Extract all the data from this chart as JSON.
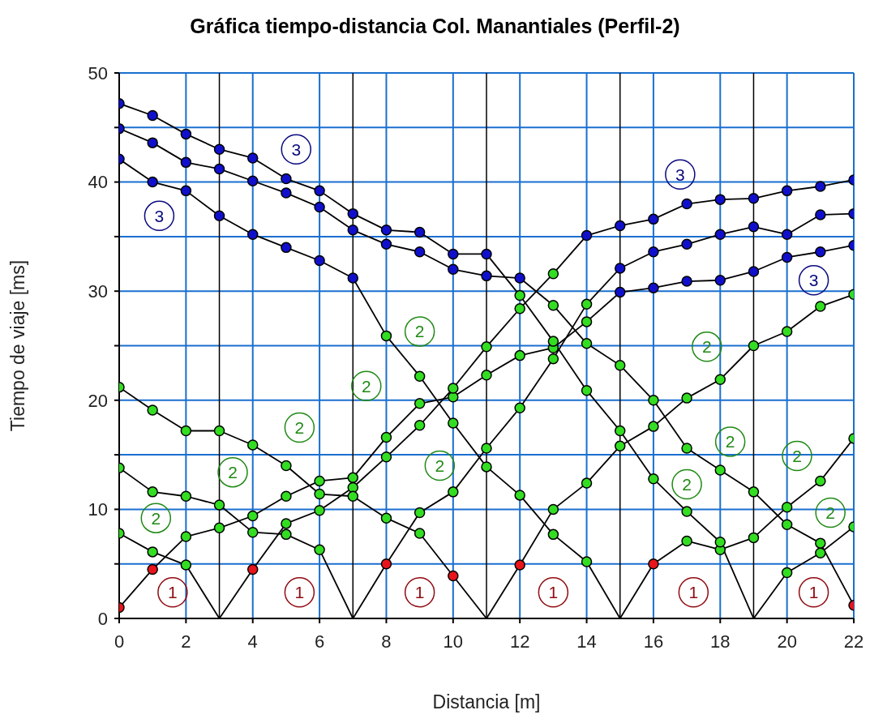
{
  "chart_data": {
    "type": "line",
    "title": "Gráfica tiempo-distancia Col. Manantiales (Perfil-2)",
    "xlabel": "Distancia [m]",
    "ylabel": "Tiempo de viaje [ms]",
    "xlim": [
      0,
      22
    ],
    "ylim": [
      0,
      50
    ],
    "xticks": [
      0,
      2,
      4,
      6,
      8,
      10,
      12,
      14,
      16,
      18,
      20,
      22
    ],
    "yticks": [
      0,
      {
        "value": 5,
        "label": null
      },
      10,
      {
        "value": 15,
        "label": null
      },
      20,
      {
        "value": 25,
        "label": null
      },
      30,
      {
        "value": 35,
        "label": null
      },
      40,
      {
        "value": 45,
        "label": null
      },
      50
    ],
    "grid": true,
    "marker": "circle",
    "line_style": "solid",
    "ref_lines": [
      {
        "axis": "x",
        "value": 3,
        "label": null,
        "color": "#000000"
      },
      {
        "axis": "x",
        "value": 7,
        "label": null,
        "color": "#000000"
      },
      {
        "axis": "x",
        "value": 11,
        "label": null,
        "color": "#000000"
      },
      {
        "axis": "x",
        "value": 15,
        "label": null,
        "color": "#000000"
      },
      {
        "axis": "x",
        "value": 19,
        "label": null,
        "color": "#000000"
      }
    ],
    "series": [
      {
        "color": "#000000",
        "x": [
          0,
          1,
          2,
          3,
          4,
          5,
          6,
          7,
          8,
          9,
          10,
          11,
          12,
          13,
          14,
          15,
          16,
          17,
          18,
          19,
          20,
          21,
          22
        ],
        "values": [
          1.0,
          4.5,
          7.5,
          8.3,
          9.4,
          11.2,
          12.6,
          12.9,
          16.6,
          19.7,
          20.3,
          22.3,
          24.1,
          24.8,
          27.2,
          29.9,
          30.3,
          30.9,
          31.0,
          31.8,
          33.1,
          33.6,
          34.2
        ],
        "colors": [
          "#e8141c",
          "#e8141c",
          "#33dd22",
          "#33dd22",
          "#33dd22",
          "#33dd22",
          "#33dd22",
          "#33dd22",
          "#33dd22",
          "#33dd22",
          "#33dd22",
          "#33dd22",
          "#33dd22",
          "#33dd22",
          "#33dd22",
          "#1010cc",
          "#1010cc",
          "#1010cc",
          "#1010cc",
          "#1010cc",
          "#1010cc",
          "#1010cc",
          "#1010cc"
        ]
      },
      {
        "color": "#000000",
        "x": [
          3,
          4,
          5,
          6,
          7,
          8,
          9,
          10,
          11,
          12,
          13,
          14,
          15,
          16,
          17,
          18,
          19,
          20,
          21,
          22
        ],
        "values": [
          0,
          4.5,
          8.7,
          9.9,
          12.0,
          14.8,
          17.7,
          21.1,
          24.9,
          28.4,
          31.6,
          35.1,
          36.0,
          36.6,
          38.0,
          38.4,
          38.5,
          39.2,
          39.6,
          40.2
        ],
        "colors": [
          null,
          "#e8141c",
          "#33dd22",
          "#33dd22",
          "#33dd22",
          "#33dd22",
          "#33dd22",
          "#33dd22",
          "#33dd22",
          "#33dd22",
          "#33dd22",
          "#1010cc",
          "#1010cc",
          "#1010cc",
          "#1010cc",
          "#1010cc",
          "#1010cc",
          "#1010cc",
          "#1010cc",
          "#1010cc"
        ]
      },
      {
        "color": "#000000",
        "x": [
          7,
          8,
          9,
          10,
          11,
          12,
          13,
          14,
          15,
          16,
          17,
          18,
          19,
          20,
          21,
          22
        ],
        "values": [
          0,
          5.0,
          9.7,
          11.6,
          15.6,
          19.3,
          23.8,
          28.8,
          32.1,
          33.6,
          34.3,
          35.2,
          35.9,
          35.2,
          37.0,
          37.1
        ],
        "colors": [
          null,
          "#e8141c",
          "#33dd22",
          "#33dd22",
          "#33dd22",
          "#33dd22",
          "#33dd22",
          "#33dd22",
          "#1010cc",
          "#1010cc",
          "#1010cc",
          "#1010cc",
          "#1010cc",
          "#1010cc",
          "#1010cc",
          "#1010cc"
        ]
      },
      {
        "color": "#000000",
        "x": [
          11,
          12,
          13,
          14,
          15,
          16,
          17,
          18,
          19,
          20,
          21,
          22
        ],
        "values": [
          0,
          4.9,
          10.0,
          12.4,
          15.8,
          17.6,
          20.2,
          21.9,
          25.0,
          26.3,
          28.6,
          29.7
        ],
        "colors": [
          null,
          "#e8141c",
          "#33dd22",
          "#33dd22",
          "#33dd22",
          "#33dd22",
          "#33dd22",
          "#33dd22",
          "#33dd22",
          "#33dd22",
          "#33dd22",
          "#33dd22"
        ]
      },
      {
        "color": "#000000",
        "x": [
          15,
          16,
          17,
          18,
          19,
          20,
          21,
          22
        ],
        "values": [
          0,
          5.0,
          7.1,
          6.3,
          7.4,
          10.2,
          12.6,
          16.5
        ],
        "colors": [
          null,
          "#e8141c",
          "#33dd22",
          "#33dd22",
          "#33dd22",
          "#33dd22",
          "#33dd22",
          "#33dd22"
        ]
      },
      {
        "color": "#000000",
        "x": [
          19,
          20,
          21,
          22
        ],
        "values": [
          0,
          4.2,
          6.0,
          8.4
        ],
        "colors": [
          null,
          "#33dd22",
          "#33dd22",
          "#33dd22"
        ]
      },
      {
        "color": "#000000",
        "x": [
          0,
          1,
          2,
          3
        ],
        "values": [
          7.8,
          6.1,
          4.9,
          0
        ],
        "colors": [
          "#33dd22",
          "#33dd22",
          "#33dd22",
          null
        ]
      },
      {
        "color": "#000000",
        "x": [
          0,
          1,
          2,
          3,
          4,
          5,
          6,
          7
        ],
        "values": [
          13.8,
          11.6,
          11.2,
          10.4,
          7.9,
          7.7,
          6.3,
          0
        ],
        "colors": [
          "#33dd22",
          "#33dd22",
          "#33dd22",
          "#33dd22",
          "#33dd22",
          "#33dd22",
          "#33dd22",
          null
        ]
      },
      {
        "color": "#000000",
        "x": [
          0,
          1,
          2,
          3,
          4,
          5,
          6,
          7,
          8,
          9,
          10,
          11
        ],
        "values": [
          21.2,
          19.1,
          17.2,
          17.2,
          15.9,
          14.0,
          11.4,
          11.2,
          9.2,
          7.8,
          3.9,
          0
        ],
        "colors": [
          "#33dd22",
          "#33dd22",
          "#33dd22",
          "#33dd22",
          "#33dd22",
          "#33dd22",
          "#33dd22",
          "#33dd22",
          "#33dd22",
          "#33dd22",
          "#e8141c",
          null
        ]
      },
      {
        "color": "#000000",
        "x": [
          0,
          1,
          2,
          3,
          4,
          5,
          6,
          7,
          8,
          9,
          10,
          11,
          12,
          13,
          14,
          15
        ],
        "values": [
          42.1,
          40.0,
          39.2,
          36.9,
          35.2,
          34.0,
          32.8,
          31.2,
          25.9,
          22.2,
          17.9,
          13.9,
          11.3,
          7.7,
          5.2,
          0
        ],
        "colors": [
          "#1010cc",
          "#1010cc",
          "#1010cc",
          "#1010cc",
          "#1010cc",
          "#1010cc",
          "#1010cc",
          "#1010cc",
          "#33dd22",
          "#33dd22",
          "#33dd22",
          "#33dd22",
          "#33dd22",
          "#33dd22",
          "#33dd22",
          null
        ]
      },
      {
        "color": "#000000",
        "x": [
          0,
          1,
          2,
          3,
          4,
          5,
          6,
          7,
          8,
          9,
          10,
          11,
          12,
          13,
          14,
          15,
          16,
          17,
          18,
          19
        ],
        "values": [
          47.2,
          46.1,
          44.4,
          43.0,
          42.2,
          40.3,
          39.2,
          37.1,
          35.6,
          35.4,
          33.4,
          33.4,
          29.6,
          25.4,
          20.9,
          17.2,
          12.8,
          9.8,
          7.0,
          0
        ],
        "colors": [
          "#1010cc",
          "#1010cc",
          "#1010cc",
          "#1010cc",
          "#1010cc",
          "#1010cc",
          "#1010cc",
          "#1010cc",
          "#1010cc",
          "#1010cc",
          "#1010cc",
          "#1010cc",
          "#33dd22",
          "#33dd22",
          "#33dd22",
          "#33dd22",
          "#33dd22",
          "#33dd22",
          "#33dd22",
          null
        ]
      },
      {
        "color": "#000000",
        "x": [
          0,
          1,
          2,
          3,
          4,
          5,
          6,
          7,
          8,
          9,
          10,
          11,
          12,
          13,
          14,
          15,
          16,
          17,
          18,
          19,
          20,
          21,
          22
        ],
        "values": [
          44.9,
          43.6,
          41.8,
          41.2,
          40.1,
          39.0,
          37.7,
          35.6,
          34.3,
          33.6,
          32.0,
          31.4,
          31.2,
          28.7,
          25.2,
          23.2,
          20.0,
          15.6,
          13.6,
          11.6,
          8.6,
          6.9,
          1.2
        ],
        "colors": [
          "#1010cc",
          "#1010cc",
          "#1010cc",
          "#1010cc",
          "#1010cc",
          "#1010cc",
          "#1010cc",
          "#1010cc",
          "#1010cc",
          "#1010cc",
          "#1010cc",
          "#1010cc",
          "#1010cc",
          "#33dd22",
          "#33dd22",
          "#33dd22",
          "#33dd22",
          "#33dd22",
          "#33dd22",
          "#33dd22",
          "#33dd22",
          "#33dd22",
          "#e8141c"
        ]
      }
    ],
    "annotations": [
      {
        "text": "3",
        "x": 5.3,
        "y": 43.0
      },
      {
        "text": "3",
        "x": 1.2,
        "y": 36.9
      },
      {
        "text": "3",
        "x": 16.8,
        "y": 40.7
      },
      {
        "text": "3",
        "x": 20.8,
        "y": 31.0
      },
      {
        "text": "2",
        "x": 9.0,
        "y": 26.3
      },
      {
        "text": "2",
        "x": 7.4,
        "y": 21.3
      },
      {
        "text": "2",
        "x": 5.4,
        "y": 17.5
      },
      {
        "text": "2",
        "x": 3.4,
        "y": 13.4
      },
      {
        "text": "2",
        "x": 1.1,
        "y": 9.2
      },
      {
        "text": "2",
        "x": 9.6,
        "y": 14.0
      },
      {
        "text": "2",
        "x": 17.6,
        "y": 24.9
      },
      {
        "text": "2",
        "x": 18.3,
        "y": 16.2
      },
      {
        "text": "2",
        "x": 17.0,
        "y": 12.3
      },
      {
        "text": "2",
        "x": 20.3,
        "y": 14.9
      },
      {
        "text": "2",
        "x": 21.3,
        "y": 9.7
      },
      {
        "text": "1",
        "x": 1.6,
        "y": 2.4
      },
      {
        "text": "1",
        "x": 5.4,
        "y": 2.4
      },
      {
        "text": "1",
        "x": 9.0,
        "y": 2.4
      },
      {
        "text": "1",
        "x": 13.0,
        "y": 2.4
      },
      {
        "text": "1",
        "x": 17.2,
        "y": 2.4
      },
      {
        "text": "1",
        "x": 20.8,
        "y": 2.4
      }
    ]
  }
}
